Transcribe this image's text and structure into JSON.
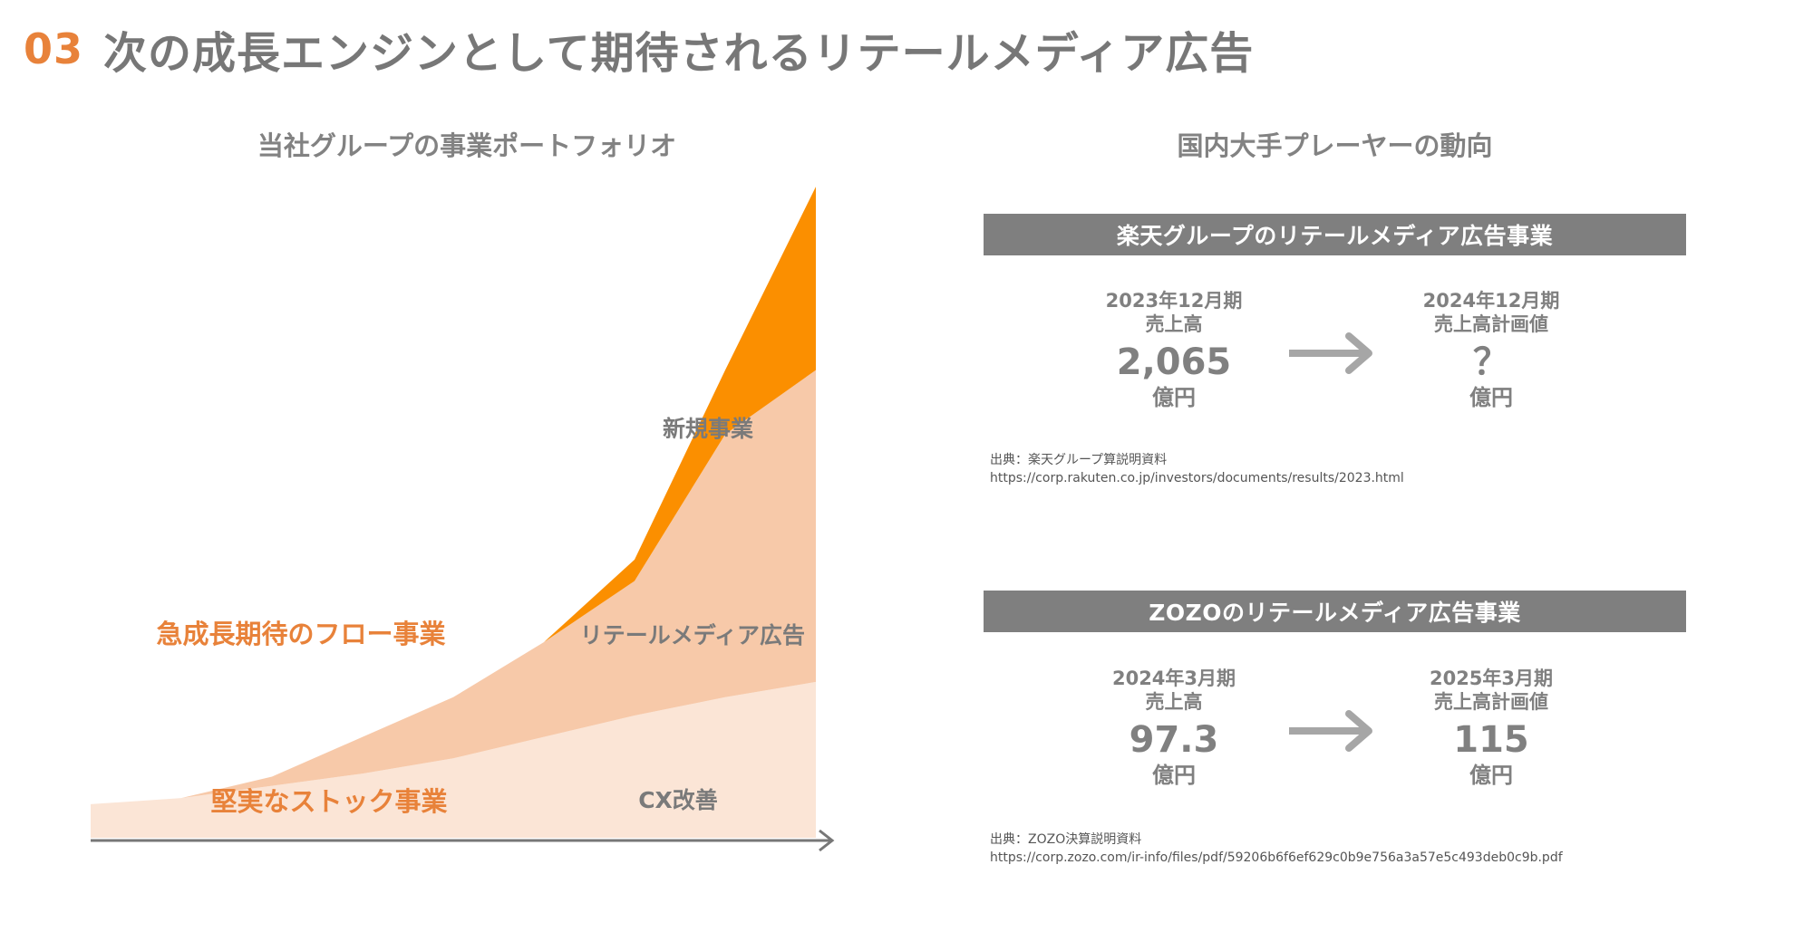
{
  "header": {
    "number": "03",
    "title": "次の成長エンジンとして期待されるリテールメディア広告"
  },
  "left": {
    "subtitle": "当社グループの事業ポートフォリオ",
    "labels": {
      "flow": "急成長期待のフロー事業",
      "stock": "堅実なストック事業",
      "new_business": "新規事業",
      "retail_media": "リテールメディア広告",
      "cx": "CX改善"
    },
    "colors": {
      "cx": "#fbe5d6",
      "retail": "#f7c9a9",
      "new": "#fb8f00",
      "accent_text": "#e8823a",
      "axis": "#777777"
    },
    "chart_data": {
      "type": "area",
      "title": "当社グループの事業ポートフォリオ",
      "xlabel": "",
      "ylabel": "",
      "x": [
        0,
        1,
        2,
        3,
        4,
        5,
        6,
        7,
        8
      ],
      "ylim": [
        0,
        10
      ],
      "series": [
        {
          "name": "CX改善",
          "values": [
            0.55,
            0.65,
            0.85,
            1.05,
            1.3,
            1.65,
            2.0,
            2.3,
            2.55
          ]
        },
        {
          "name": "リテールメディア広告",
          "values": [
            0.0,
            0.0,
            0.15,
            0.6,
            1.0,
            1.55,
            2.2,
            4.3,
            5.1
          ]
        },
        {
          "name": "新規事業",
          "values": [
            0.0,
            0.0,
            0.0,
            0.0,
            0.0,
            0.0,
            0.35,
            1.05,
            3.0
          ]
        }
      ]
    }
  },
  "right": {
    "subtitle": "国内大手プレーヤーの動向",
    "panels": [
      {
        "title": "楽天グループのリテールメディア広告事業",
        "before": {
          "period": "2023年12月期",
          "label": "売上高",
          "value": "2,065",
          "unit": "億円"
        },
        "after": {
          "period": "2024年12月期",
          "label": "売上高計画値",
          "value": "？",
          "unit": "億円"
        },
        "source_line1": "出典：楽天グループ算説明資料",
        "source_line2": "https://corp.rakuten.co.jp/investors/documents/results/2023.html"
      },
      {
        "title": "ZOZOのリテールメディア広告事業",
        "before": {
          "period": "2024年3月期",
          "label": "売上高",
          "value": "97.3",
          "unit": "億円"
        },
        "after": {
          "period": "2025年3月期",
          "label": "売上高計画値",
          "value": "115",
          "unit": "億円"
        },
        "source_line1": "出典：ZOZO決算説明資料",
        "source_line2": "https://corp.zozo.com/ir-info/files/pdf/59206b6f6ef629c0b9e756a3a57e5c493deb0c9b.pdf"
      }
    ],
    "arrow_color": "#a6a6a6"
  }
}
